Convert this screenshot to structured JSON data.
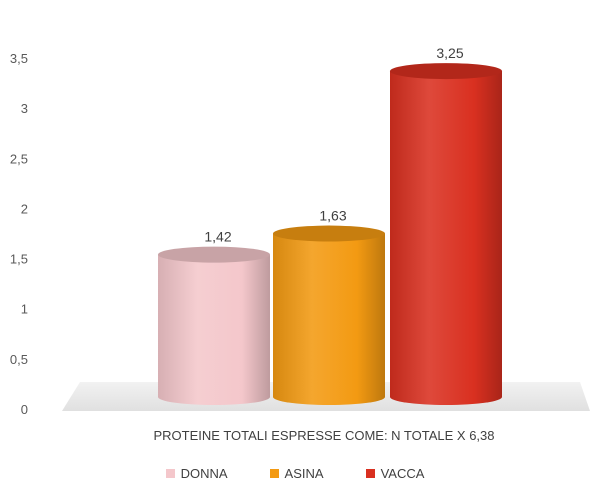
{
  "chart_data": {
    "type": "bar",
    "categories": [
      "PROTEINE TOTALI ESPRESSE COME: N TOTALE X 6,38"
    ],
    "series": [
      {
        "name": "DONNA",
        "values": [
          1.42
        ],
        "color": "#F4C7CB",
        "label": "1,42"
      },
      {
        "name": "ASINA",
        "values": [
          1.63
        ],
        "color": "#F39A12",
        "label": "1,63"
      },
      {
        "name": "VACCA",
        "values": [
          3.25
        ],
        "color": "#D93020",
        "label": "3,25"
      }
    ],
    "ylim": [
      0,
      3.5
    ],
    "yticks": [
      {
        "value": 0,
        "label": "0"
      },
      {
        "value": 0.5,
        "label": "0,5"
      },
      {
        "value": 1,
        "label": "1"
      },
      {
        "value": 1.5,
        "label": "1,5"
      },
      {
        "value": 2,
        "label": "2"
      },
      {
        "value": 2.5,
        "label": "2,5"
      },
      {
        "value": 3,
        "label": "3"
      },
      {
        "value": 3.5,
        "label": "3,5"
      }
    ],
    "grid": false,
    "legend_position": "bottom",
    "bar_shape": "cylinder"
  }
}
